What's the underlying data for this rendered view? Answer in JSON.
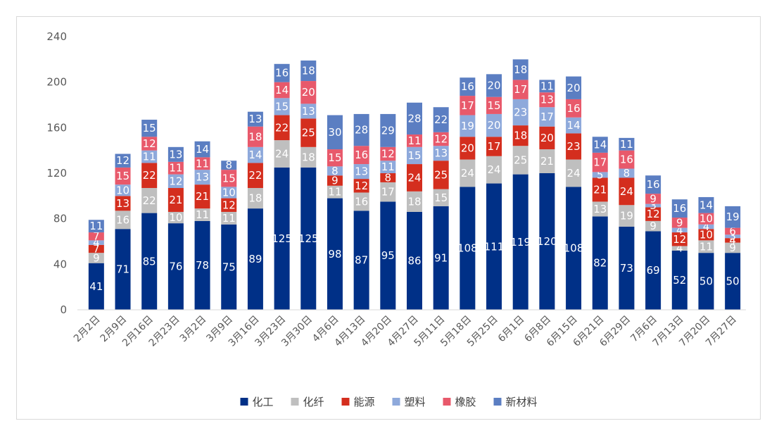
{
  "chart_data": {
    "type": "bar",
    "stacked": true,
    "categories": [
      "2月2日",
      "2月9日",
      "2月16日",
      "2月23日",
      "3月2日",
      "3月9日",
      "3月16日",
      "3月23日",
      "3月30日",
      "4月6日",
      "4月13日",
      "4月20日",
      "4月27日",
      "5月11日",
      "5月18日",
      "5月25日",
      "6月1日",
      "6月8日",
      "6月15日",
      "6月21日",
      "6月29日",
      "7月6日",
      "7月13日",
      "7月20日",
      "7月27日"
    ],
    "series": [
      {
        "name": "化工",
        "color": "#003087",
        "values": [
          41,
          71,
          85,
          76,
          78,
          75,
          89,
          125,
          125,
          98,
          87,
          95,
          86,
          91,
          108,
          111,
          119,
          120,
          108,
          82,
          73,
          69,
          52,
          50,
          50
        ]
      },
      {
        "name": "化纤",
        "color": "#bfbfbf",
        "values": [
          9,
          16,
          22,
          10,
          11,
          11,
          18,
          24,
          18,
          11,
          16,
          17,
          18,
          15,
          24,
          24,
          25,
          21,
          24,
          13,
          19,
          9,
          4,
          11,
          9
        ]
      },
      {
        "name": "能源",
        "color": "#d42e1e",
        "values": [
          7,
          13,
          22,
          21,
          21,
          12,
          22,
          22,
          25,
          9,
          12,
          8,
          24,
          25,
          20,
          17,
          18,
          20,
          23,
          21,
          24,
          12,
          12,
          10,
          4
        ]
      },
      {
        "name": "塑料",
        "color": "#8ea9db",
        "values": [
          4,
          10,
          11,
          12,
          13,
          10,
          14,
          15,
          13,
          8,
          13,
          11,
          15,
          13,
          19,
          20,
          23,
          17,
          14,
          5,
          8,
          3,
          4,
          4,
          3
        ]
      },
      {
        "name": "橡胶",
        "color": "#e8596b",
        "values": [
          7,
          15,
          12,
          11,
          11,
          15,
          18,
          14,
          20,
          15,
          16,
          12,
          11,
          12,
          17,
          15,
          17,
          13,
          16,
          17,
          16,
          9,
          9,
          10,
          6
        ]
      },
      {
        "name": "新材料",
        "color": "#5b7ec2",
        "values": [
          11,
          12,
          15,
          13,
          14,
          8,
          13,
          16,
          18,
          30,
          28,
          29,
          28,
          22,
          16,
          20,
          18,
          11,
          20,
          14,
          11,
          16,
          16,
          14,
          19
        ]
      }
    ],
    "ylim": [
      0,
      240
    ],
    "yticks": [
      "0",
      "40",
      "80",
      "120",
      "160",
      "200",
      "240"
    ],
    "xlabel": "",
    "ylabel": "",
    "grid": false,
    "legend_position": "bottom"
  }
}
